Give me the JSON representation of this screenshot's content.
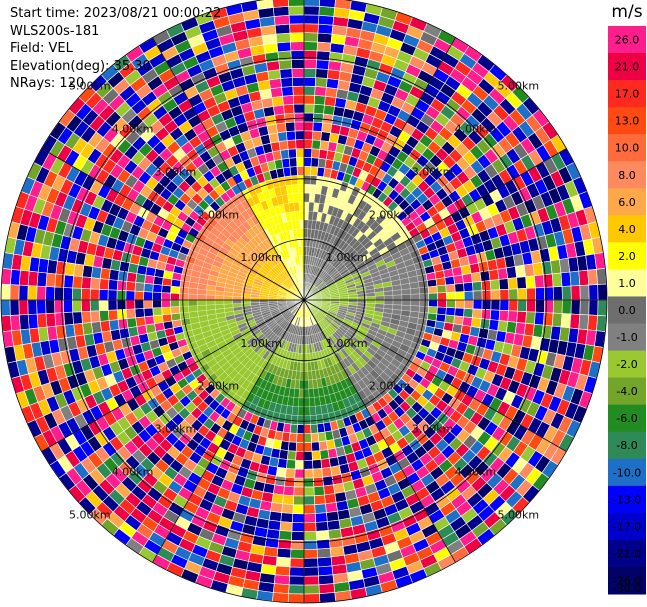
{
  "info": {
    "start_time": "Start time: 2023/08/21 00:00:22",
    "station": "WLS200s-181",
    "field": "Field: VEL",
    "elevation": "Elevation(deg): 35.30",
    "nrays": "NRays: 120"
  },
  "colorbar": {
    "unit": "m/s",
    "labels": [
      "26.0",
      "21.0",
      "17.0",
      "13.0",
      "10.0",
      "8.0",
      "6.0",
      "4.0",
      "2.0",
      "1.0",
      "0.0",
      "-1.0",
      "-2.0",
      "-4.0",
      "-6.0",
      "-8.0",
      "-10.0",
      "-13.0",
      "-17.0",
      "-21.0",
      "-26.0",
      "-30.0"
    ],
    "colors": [
      "#ff1e8c",
      "#ee0044",
      "#ff2a1f",
      "#ff4a12",
      "#ff6b3a",
      "#ff8a60",
      "#ffa84a",
      "#ffc800",
      "#ffff00",
      "#ffff9a",
      "#6e6e6e",
      "#808080",
      "#9ac830",
      "#73a52a",
      "#228b22",
      "#2e8b57",
      "#1e6fc8",
      "#0000ff",
      "#0000cd",
      "#00008b",
      "#000066"
    ]
  },
  "chart_data": {
    "type": "ppi",
    "field": "VEL",
    "units": "m/s",
    "elevation_deg": 35.3,
    "nrays": 120,
    "range_rings_km": [
      {
        "value": 1.0,
        "label": "1.00km"
      },
      {
        "value": 2.0,
        "label": "2.00km"
      },
      {
        "value": 3.0,
        "label": "3.00km"
      },
      {
        "value": 4.0,
        "label": "4.00km"
      },
      {
        "value": 5.0,
        "label": "5.00km"
      }
    ],
    "spokes_deg": [
      0,
      30,
      60,
      90,
      120,
      150,
      180,
      210,
      240,
      270,
      300,
      330
    ],
    "max_range_km": 5.0,
    "valid_range_km": 2.2,
    "velocity_sectors": [
      {
        "azimuth_from": 270,
        "azimuth_to": 330,
        "near_ms": 1.0,
        "far_ms": 8.0
      },
      {
        "azimuth_from": 330,
        "azimuth_to": 360,
        "near_ms": 0.5,
        "far_ms": 2.0
      },
      {
        "azimuth_from": 0,
        "azimuth_to": 60,
        "near_ms": -2.0,
        "far_ms": 0.5
      },
      {
        "azimuth_from": 60,
        "azimuth_to": 150,
        "near_ms": -3.0,
        "far_ms": -1.0
      },
      {
        "azimuth_from": 150,
        "azimuth_to": 210,
        "near_ms": 3.0,
        "far_ms": -10.0
      },
      {
        "azimuth_from": 210,
        "azimuth_to": 270,
        "near_ms": 0.0,
        "far_ms": -4.0
      }
    ]
  }
}
